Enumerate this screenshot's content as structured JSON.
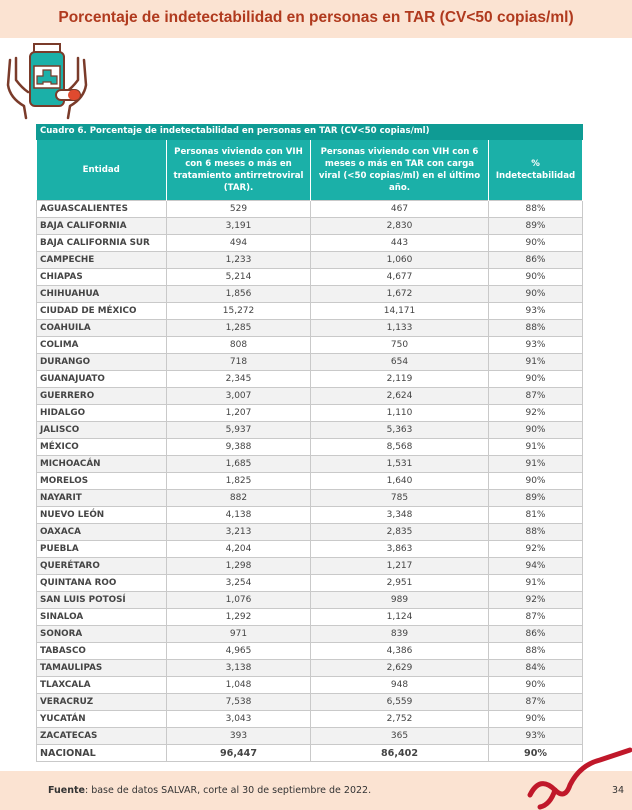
{
  "header": {
    "title": "Porcentaje de indetectabilidad en personas en TAR (CV<50 copias/ml)"
  },
  "table": {
    "caption": "Cuadro 6. Porcentaje de indetectabilidad en personas en TAR (CV<50 copias/ml)",
    "columns": [
      "Entidad",
      "Personas viviendo con VIH con 6 meses o más en tratamiento antirretroviral (TAR).",
      "Personas viviendo con VIH con 6 meses o más en TAR con carga viral (<50 copias/ml) en el último año.",
      "% Indetectabilidad"
    ],
    "rows": [
      [
        "AGUASCALIENTES",
        "529",
        "467",
        "88%"
      ],
      [
        "BAJA CALIFORNIA",
        "3,191",
        "2,830",
        "89%"
      ],
      [
        "BAJA CALIFORNIA SUR",
        "494",
        "443",
        "90%"
      ],
      [
        "CAMPECHE",
        "1,233",
        "1,060",
        "86%"
      ],
      [
        "CHIAPAS",
        "5,214",
        "4,677",
        "90%"
      ],
      [
        "CHIHUAHUA",
        "1,856",
        "1,672",
        "90%"
      ],
      [
        "CIUDAD DE MÉXICO",
        "15,272",
        "14,171",
        "93%"
      ],
      [
        "COAHUILA",
        "1,285",
        "1,133",
        "88%"
      ],
      [
        "COLIMA",
        "808",
        "750",
        "93%"
      ],
      [
        "DURANGO",
        "718",
        "654",
        "91%"
      ],
      [
        "GUANAJUATO",
        "2,345",
        "2,119",
        "90%"
      ],
      [
        "GUERRERO",
        "3,007",
        "2,624",
        "87%"
      ],
      [
        "HIDALGO",
        "1,207",
        "1,110",
        "92%"
      ],
      [
        "JALISCO",
        "5,937",
        "5,363",
        "90%"
      ],
      [
        "MÉXICO",
        "9,388",
        "8,568",
        "91%"
      ],
      [
        "MICHOACÁN",
        "1,685",
        "1,531",
        "91%"
      ],
      [
        "MORELOS",
        "1,825",
        "1,640",
        "90%"
      ],
      [
        "NAYARIT",
        "882",
        "785",
        "89%"
      ],
      [
        "NUEVO LEÓN",
        "4,138",
        "3,348",
        "81%"
      ],
      [
        "OAXACA",
        "3,213",
        "2,835",
        "88%"
      ],
      [
        "PUEBLA",
        "4,204",
        "3,863",
        "92%"
      ],
      [
        "QUERÉTARO",
        "1,298",
        "1,217",
        "94%"
      ],
      [
        "QUINTANA ROO",
        "3,254",
        "2,951",
        "91%"
      ],
      [
        "SAN LUIS POTOSÍ",
        "1,076",
        "989",
        "92%"
      ],
      [
        "SINALOA",
        "1,292",
        "1,124",
        "87%"
      ],
      [
        "SONORA",
        "971",
        "839",
        "86%"
      ],
      [
        "TABASCO",
        "4,965",
        "4,386",
        "88%"
      ],
      [
        "TAMAULIPAS",
        "3,138",
        "2,629",
        "84%"
      ],
      [
        "TLAXCALA",
        "1,048",
        "948",
        "90%"
      ],
      [
        "VERACRUZ",
        "7,538",
        "6,559",
        "87%"
      ],
      [
        "YUCATÁN",
        "3,043",
        "2,752",
        "90%"
      ],
      [
        "ZACATECAS",
        "393",
        "365",
        "93%"
      ],
      [
        "NACIONAL",
        "96,447",
        "86,402",
        "90%"
      ]
    ]
  },
  "footer": {
    "source_label": "Fuente",
    "source_text": ": base de datos SALVAR, corte al 30 de septiembre de 2022.",
    "page": "34"
  }
}
